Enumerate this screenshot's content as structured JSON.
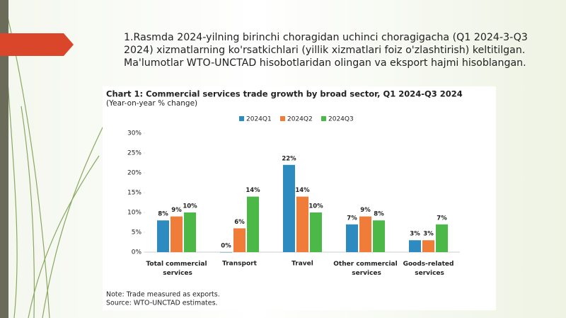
{
  "heading": "1.Rasmda 2024-yilning birinchi choragidan uchinci choragigacha (Q1 2024-3-Q3 2024) xizmatlarning ko'rsatkichlari (yillik xizmatlari foiz o'zlashtirish) keltitilgan. Ma'lumotlar WTO-UNCTAD hisobotlaridan olingan va eksport hajmi hisoblangan.",
  "chart_data": {
    "type": "bar",
    "title": "Chart 1: Commercial services trade growth by broad sector, Q1 2024-Q3 2024",
    "subtitle": "(Year-on-year % change)",
    "note": "Note: Trade measured as exports.",
    "source": "Source: WTO-UNCTAD estimates.",
    "categories": [
      "Total commercial services",
      "Transport",
      "Travel",
      "Other commercial services",
      "Goods-related services"
    ],
    "series": [
      {
        "name": "2024Q1",
        "color": "#2e8bc0",
        "values": [
          8,
          0,
          22,
          7,
          3
        ],
        "value_labels": [
          "8%",
          "0%",
          "22%",
          "7%",
          "3%"
        ]
      },
      {
        "name": "2024Q2",
        "color": "#f07c3a",
        "values": [
          9,
          6,
          14,
          9,
          3
        ],
        "value_labels": [
          "9%",
          "6%",
          "14%",
          "9%",
          "3%"
        ]
      },
      {
        "name": "2024Q3",
        "color": "#4cb848",
        "values": [
          10,
          14,
          10,
          8,
          7
        ],
        "value_labels": [
          "10%",
          "14%",
          "10%",
          "8%",
          "7%"
        ]
      }
    ],
    "ylim": [
      0,
      30
    ],
    "yticks": [
      {
        "value": 0,
        "label": "0%"
      },
      {
        "value": 5,
        "label": "5%"
      },
      {
        "value": 10,
        "label": "10%"
      },
      {
        "value": 15,
        "label": "15%"
      },
      {
        "value": 20,
        "label": "20%"
      },
      {
        "value": 25,
        "label": "25%"
      },
      {
        "value": 30,
        "label": "30%"
      }
    ],
    "legend": "top",
    "grid": false
  }
}
